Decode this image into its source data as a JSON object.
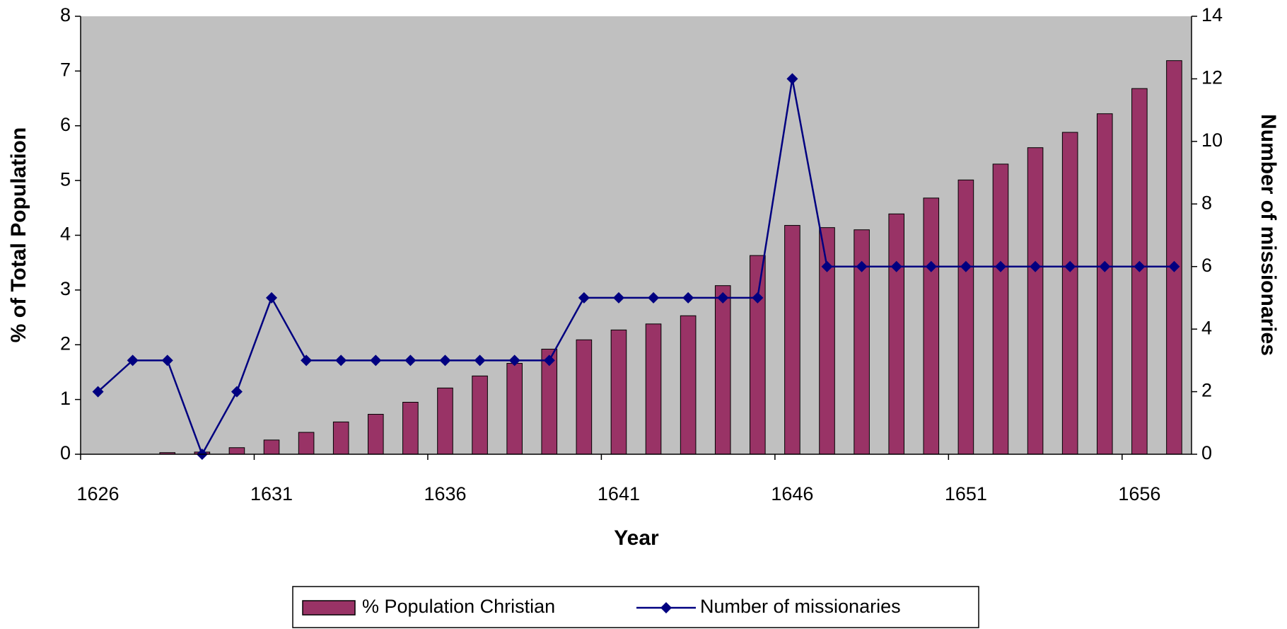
{
  "chart_data": {
    "type": "bar",
    "xlabel": "Year",
    "ylabel": "% of Total Population",
    "y2label": "Number of missionaries",
    "categories": [
      "1626",
      null,
      null,
      null,
      null,
      "1631",
      null,
      null,
      null,
      null,
      "1636",
      null,
      null,
      null,
      null,
      "1641",
      null,
      null,
      null,
      null,
      "1646",
      null,
      null,
      null,
      null,
      "1651",
      null,
      null,
      null,
      null,
      "1656",
      null
    ],
    "series": [
      {
        "name": "% Population Christian",
        "type": "bar",
        "color": "#993366",
        "values": [
          0,
          0,
          0.03,
          0.04,
          0.12,
          0.26,
          0.4,
          0.59,
          0.73,
          0.95,
          1.21,
          1.43,
          1.66,
          1.92,
          2.09,
          2.27,
          2.38,
          2.53,
          3.08,
          3.63,
          4.18,
          4.14,
          4.1,
          4.39,
          4.68,
          5.01,
          5.3,
          5.6,
          5.88,
          6.22,
          6.68,
          7.19
        ]
      },
      {
        "name": "Number of missionaries",
        "type": "line",
        "axis": "y2",
        "color": "#000080",
        "values": [
          2,
          3,
          3,
          0,
          2,
          5,
          3,
          3,
          3,
          3,
          3,
          3,
          3,
          3,
          5,
          5,
          5,
          5,
          5,
          5,
          12,
          6,
          6,
          6,
          6,
          6,
          6,
          6,
          6,
          6,
          6,
          6
        ]
      }
    ],
    "ylim": [
      0,
      8
    ],
    "yticks": [
      0,
      1,
      2,
      3,
      4,
      5,
      6,
      7,
      8
    ],
    "y2lim": [
      0,
      14
    ],
    "y2ticks": [
      0,
      2,
      4,
      6,
      8,
      10,
      12,
      14
    ],
    "plot_background": "#c0c0c0",
    "legend": "bottom"
  }
}
